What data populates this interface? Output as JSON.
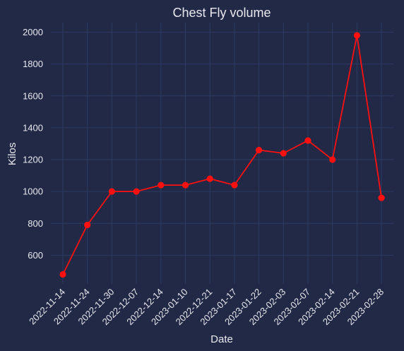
{
  "chart_data": {
    "type": "line",
    "title": "Chest Fly volume",
    "xlabel": "Date",
    "ylabel": "Kilos",
    "categories": [
      "2022-11-14",
      "2022-11-24",
      "2022-11-30",
      "2022-12-07",
      "2022-12-14",
      "2023-01-10",
      "2022-12-21",
      "2023-01-17",
      "2023-01-22",
      "2023-02-03",
      "2023-02-07",
      "2023-02-14",
      "2023-02-21",
      "2023-02-28"
    ],
    "yticks": [
      600,
      800,
      1000,
      1200,
      1400,
      1600,
      1800,
      2000
    ],
    "ylim": [
      420,
      2060
    ],
    "grid": true,
    "series": [
      {
        "values": [
          480,
          790,
          1000,
          1000,
          1040,
          1040,
          1080,
          1040,
          1260,
          1240,
          1320,
          1200,
          1980,
          960
        ],
        "color": "#ff1010"
      }
    ]
  },
  "colors": {
    "background": "#212946",
    "grid": "#2e3a63",
    "text": "#e8e8ee"
  }
}
